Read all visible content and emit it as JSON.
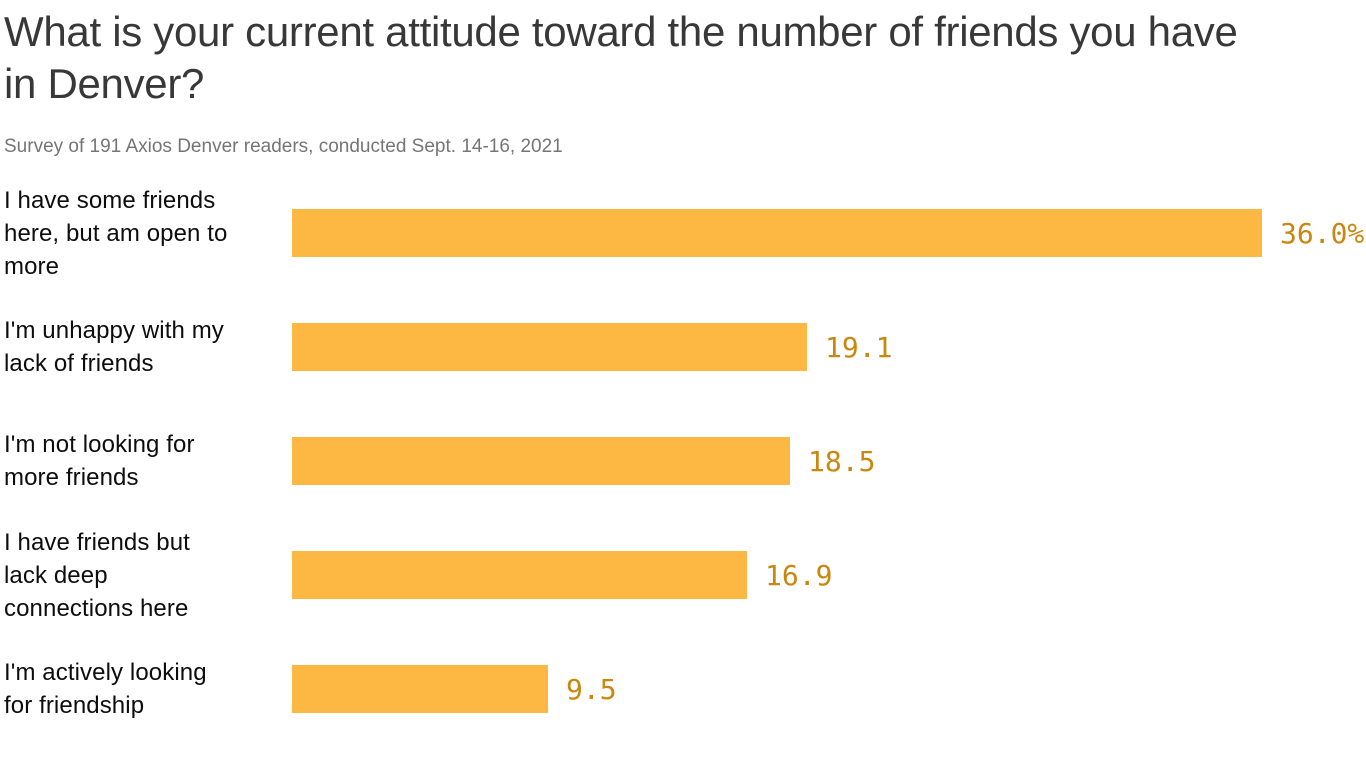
{
  "chart_data": {
    "type": "bar",
    "orientation": "horizontal",
    "title": "What is your current attitude toward the number of friends you have in Denver?",
    "title_lines": [
      "What is your current attitude toward the number of friends you have",
      "in Denver?"
    ],
    "subtitle": "Survey of 191 Axios Denver readers, conducted Sept. 14-16, 2021",
    "categories": [
      "I have some friends here, but am open to more",
      "I'm unhappy with my lack of friends",
      "I'm not looking for more friends",
      "I have friends but lack deep connections here",
      "I'm actively looking for friendship"
    ],
    "category_line_breaks": [
      [
        "I have some friends",
        "here, but am open to",
        "more"
      ],
      [
        "I'm unhappy with my",
        "lack of friends"
      ],
      [
        "I'm not looking for",
        "more friends"
      ],
      [
        "I have friends but",
        "lack deep",
        "connections here"
      ],
      [
        "I'm actively looking",
        "for friendship"
      ]
    ],
    "values": [
      36.0,
      19.1,
      18.5,
      16.9,
      9.5
    ],
    "value_labels": [
      "36.0%",
      "19.1",
      "18.5",
      "16.9",
      "9.5"
    ],
    "xlim": [
      0,
      36
    ],
    "grid": false,
    "legend": false,
    "bar_color": "#FDB843",
    "value_label_color": "#C9870F",
    "title_color": "#383838",
    "subtitle_color": "#757575",
    "category_label_color": "#0d0d0d"
  }
}
